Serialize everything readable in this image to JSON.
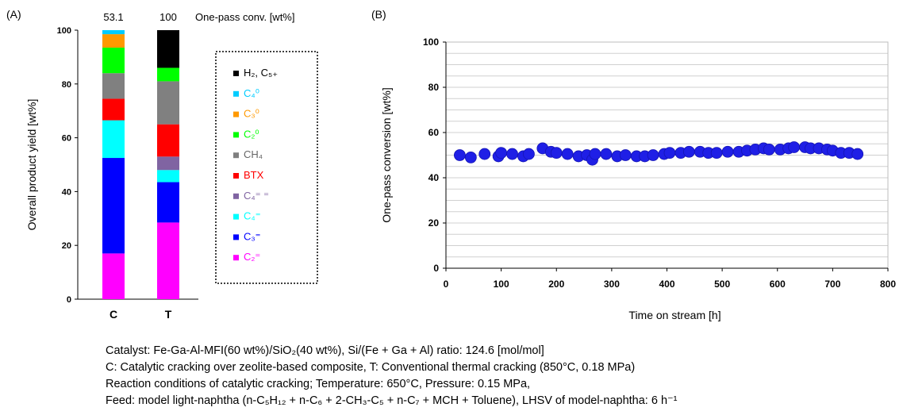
{
  "chart_data": [
    {
      "panel": "(A)",
      "type": "bar",
      "stacked": true,
      "ylabel": "Overall product yield [wt%]",
      "ylim": [
        0,
        100
      ],
      "yticks": [
        0,
        20,
        40,
        60,
        80,
        100
      ],
      "categories": [
        "C",
        "T"
      ],
      "top_label_title": "One-pass conv. [wt%]",
      "top_labels": [
        "53.1",
        "100"
      ],
      "series": [
        {
          "name": "C₂⁼",
          "color": "#ff00ff",
          "values": [
            17,
            28.5
          ]
        },
        {
          "name": "C₃⁼",
          "color": "#0000ff",
          "values": [
            35.5,
            15
          ]
        },
        {
          "name": "C₄⁼",
          "color": "#00ffff",
          "values": [
            14,
            4.5
          ]
        },
        {
          "name": "C₄⁼ ⁼",
          "color": "#8064a2",
          "values": [
            0,
            5
          ]
        },
        {
          "name": "BTX",
          "color": "#ff0000",
          "values": [
            8,
            12
          ]
        },
        {
          "name": "CH₄",
          "color": "#808080",
          "values": [
            9.5,
            16
          ]
        },
        {
          "name": "C₂⁰",
          "color": "#00ff00",
          "values": [
            9.5,
            5
          ]
        },
        {
          "name": "C₃⁰",
          "color": "#ff9900",
          "values": [
            5,
            0
          ]
        },
        {
          "name": "C₄⁰",
          "color": "#00ccff",
          "values": [
            1.5,
            0
          ]
        },
        {
          "name": "H₂, C₅₊",
          "color": "#000000",
          "values": [
            0,
            14
          ]
        }
      ],
      "legend_position": "right",
      "legend_order": [
        "H₂, C₅₊",
        "C₄⁰",
        "C₃⁰",
        "C₂⁰",
        "CH₄",
        "BTX",
        "C₄⁼ ⁼",
        "C₄⁼",
        "C₃⁼",
        "C₂⁼"
      ]
    },
    {
      "panel": "(B)",
      "type": "scatter",
      "xlabel": "Time on stream [h]",
      "ylabel": "One-pass conversion [wt%]",
      "xlim": [
        0,
        800
      ],
      "ylim": [
        0,
        100
      ],
      "xticks": [
        0,
        100,
        200,
        300,
        400,
        500,
        600,
        700,
        800
      ],
      "yticks": [
        0,
        20,
        40,
        60,
        80,
        100
      ],
      "grid": true,
      "series": [
        {
          "marker_color": "#1f1fe6",
          "points": [
            [
              25,
              50
            ],
            [
              45,
              49
            ],
            [
              70,
              50.5
            ],
            [
              95,
              49.5
            ],
            [
              100,
              51
            ],
            [
              120,
              50.5
            ],
            [
              140,
              49.5
            ],
            [
              150,
              50.5
            ],
            [
              175,
              53
            ],
            [
              190,
              51.5
            ],
            [
              200,
              51
            ],
            [
              220,
              50.5
            ],
            [
              240,
              49.5
            ],
            [
              255,
              50
            ],
            [
              265,
              48
            ],
            [
              270,
              50.5
            ],
            [
              290,
              50.5
            ],
            [
              310,
              49.5
            ],
            [
              325,
              50
            ],
            [
              345,
              49.5
            ],
            [
              360,
              49.5
            ],
            [
              375,
              50
            ],
            [
              395,
              50.5
            ],
            [
              405,
              51
            ],
            [
              425,
              51
            ],
            [
              440,
              51.5
            ],
            [
              460,
              51.5
            ],
            [
              475,
              51
            ],
            [
              490,
              51
            ],
            [
              510,
              51.5
            ],
            [
              530,
              51.5
            ],
            [
              545,
              52
            ],
            [
              560,
              52.5
            ],
            [
              575,
              53
            ],
            [
              585,
              52.5
            ],
            [
              605,
              52.5
            ],
            [
              620,
              53
            ],
            [
              630,
              53.5
            ],
            [
              650,
              53.5
            ],
            [
              660,
              53
            ],
            [
              675,
              53
            ],
            [
              690,
              52.5
            ],
            [
              700,
              52
            ],
            [
              715,
              51
            ],
            [
              730,
              51
            ],
            [
              745,
              50.5
            ]
          ]
        }
      ]
    }
  ],
  "caption": {
    "line1": "Catalyst: Fe-Ga-Al-MFI(60 wt%)/SiO₂(40 wt%), Si/(Fe + Ga + Al) ratio: 124.6 [mol/mol]",
    "line2": "C: Catalytic cracking over zeolite-based composite, T: Conventional thermal cracking (850°C, 0.18 MPa)",
    "line3": "Reaction conditions of catalytic cracking; Temperature: 650°C, Pressure: 0.15 MPa,",
    "line4": "Feed: model light-naphtha (n-C₅H₁₂ + n-C₆ + 2-CH₃-C₅ + n-C₇ + MCH + Toluene), LHSV of model-naphtha: 6 h⁻¹"
  }
}
